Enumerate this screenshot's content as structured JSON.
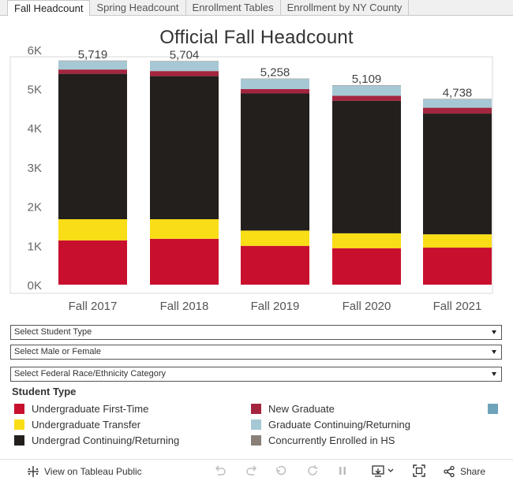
{
  "tabs": [
    "Fall Headcount",
    "Spring Headcount",
    "Enrollment Tables",
    "Enrollment by NY County"
  ],
  "chart_data": {
    "type": "bar",
    "stacked": true,
    "title": "Official Fall Headcount",
    "categories": [
      "Fall 2017",
      "Fall 2018",
      "Fall 2019",
      "Fall 2020",
      "Fall 2021"
    ],
    "series": [
      {
        "name": "Undergraduate First-Time",
        "color": "#c8102e",
        "values": [
          1130,
          1170,
          990,
          930,
          945
        ]
      },
      {
        "name": "Undergraduate Transfer",
        "color": "#f9dd16",
        "values": [
          540,
          500,
          390,
          380,
          340
        ]
      },
      {
        "name": "Undergrad Continuing/Returning",
        "color": "#231f1d",
        "values": [
          3710,
          3650,
          3500,
          3380,
          3080
        ]
      },
      {
        "name": "New Graduate",
        "color": "#a3253f",
        "values": [
          110,
          130,
          110,
          130,
          150
        ]
      },
      {
        "name": "Graduate Continuing/Returning",
        "color": "#a6c8d4",
        "values": [
          219,
          244,
          258,
          259,
          213
        ]
      },
      {
        "name": "Concurrently Enrolled in HS",
        "color": "#8a7f77",
        "values": [
          10,
          10,
          10,
          10,
          10
        ]
      }
    ],
    "totals": [
      "5,719",
      "5,704",
      "5,258",
      "5,109",
      "4,738"
    ],
    "yticks": [
      "0K",
      "1K",
      "2K",
      "3K",
      "4K",
      "5K",
      "6K"
    ],
    "ylim": [
      0,
      6100
    ],
    "xlabel": "",
    "ylabel": ""
  },
  "filters": [
    "Select Student Type",
    "Select Male or Female",
    "Select Federal Race/Ethnicity Category"
  ],
  "legend": {
    "title": "Student Type",
    "extra_swatch_color": "#6fa3bc"
  },
  "footer": {
    "view_label": "View on Tableau Public",
    "share_label": "Share"
  }
}
